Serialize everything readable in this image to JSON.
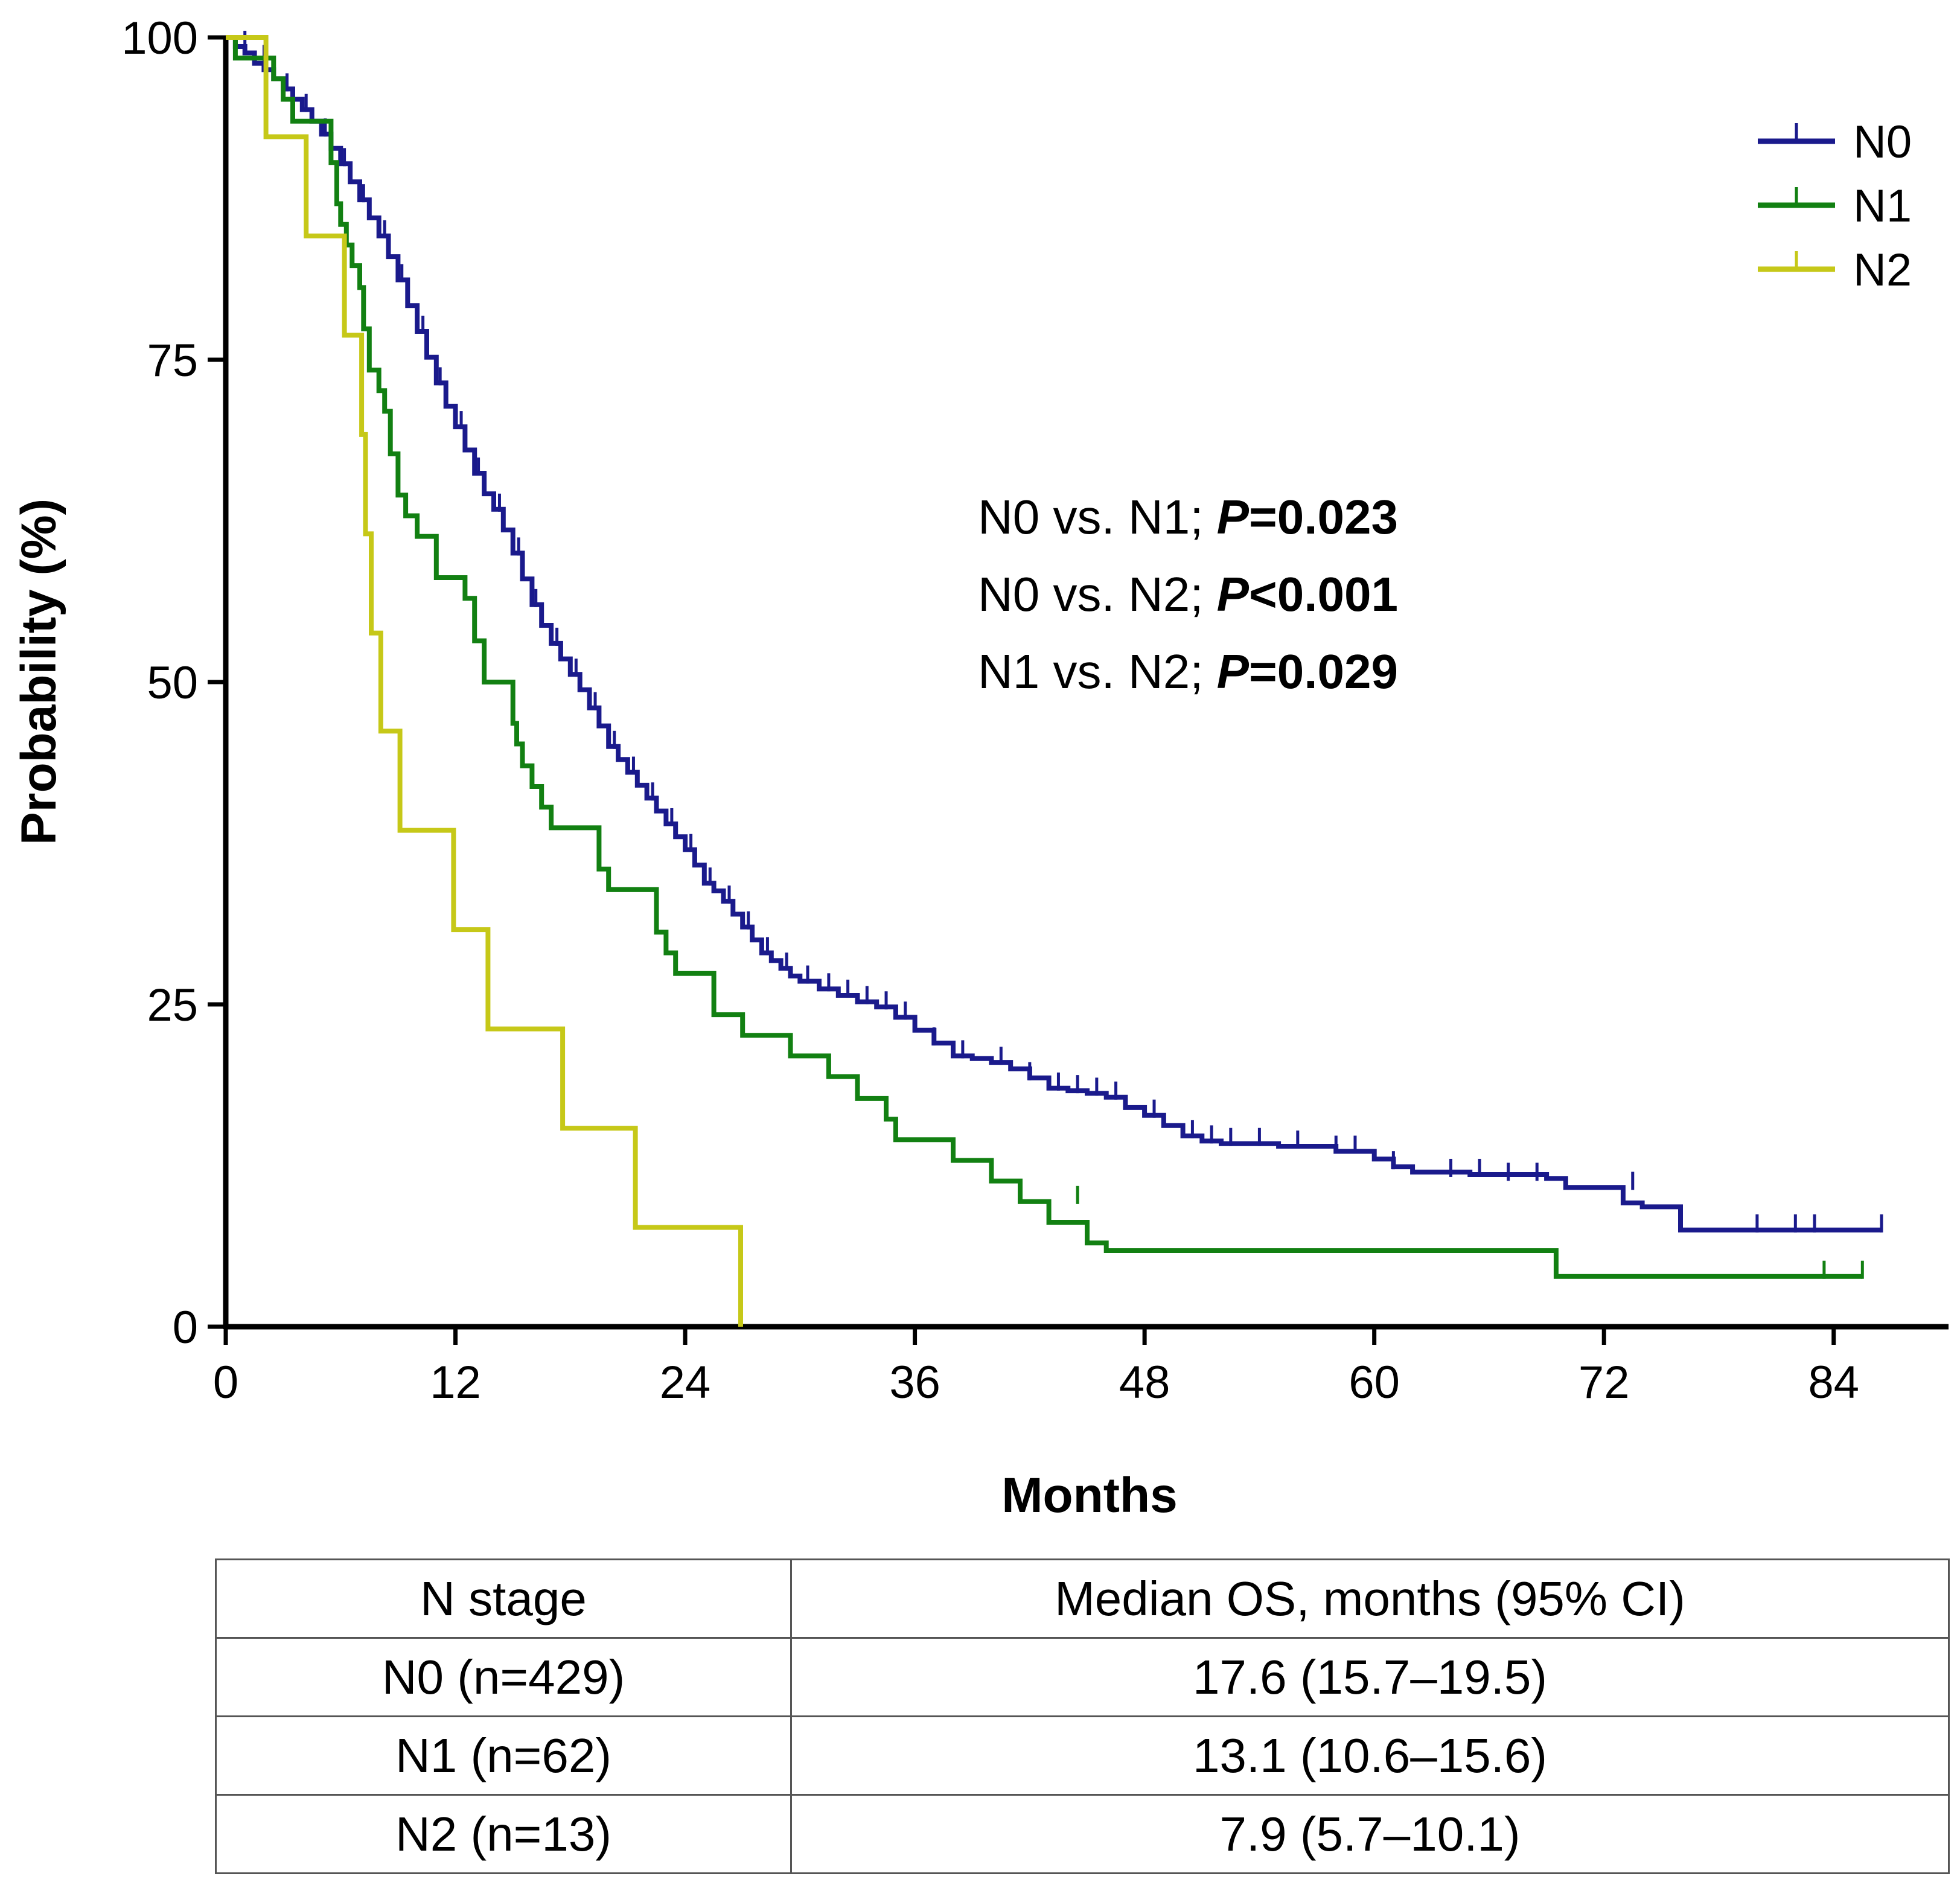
{
  "chart_data": {
    "type": "line",
    "subtype": "kaplan-meier",
    "xlabel": "Months",
    "ylabel": "Probability (%)",
    "xlim": [
      0,
      90
    ],
    "ylim": [
      0,
      100
    ],
    "xticks": [
      0,
      12,
      24,
      36,
      48,
      60,
      72,
      84
    ],
    "yticks": [
      0,
      25,
      50,
      75,
      100
    ],
    "legend_position": "top-right",
    "series": [
      {
        "name": "N0",
        "color": "#1a1a8c",
        "steps": [
          [
            0,
            100
          ],
          [
            0.5,
            99.3
          ],
          [
            1,
            98.8
          ],
          [
            1.5,
            98
          ],
          [
            2,
            97.5
          ],
          [
            2.5,
            96.8
          ],
          [
            3,
            96
          ],
          [
            3.5,
            95.2
          ],
          [
            4,
            94.4
          ],
          [
            4.5,
            93.5
          ],
          [
            5,
            92.5
          ],
          [
            5.5,
            91.4
          ],
          [
            6,
            90.2
          ],
          [
            6.5,
            88.8
          ],
          [
            7,
            87.4
          ],
          [
            7.5,
            86
          ],
          [
            8,
            84.6
          ],
          [
            8.5,
            83
          ],
          [
            9,
            81.2
          ],
          [
            9.5,
            79.2
          ],
          [
            10,
            77.2
          ],
          [
            10.5,
            75.2
          ],
          [
            11,
            73.2
          ],
          [
            11.5,
            71.4
          ],
          [
            12,
            69.8
          ],
          [
            12.5,
            68
          ],
          [
            13,
            66.2
          ],
          [
            13.5,
            64.6
          ],
          [
            14,
            63.4
          ],
          [
            14.5,
            61.8
          ],
          [
            15,
            60
          ],
          [
            15.5,
            58
          ],
          [
            16,
            56
          ],
          [
            16.5,
            54.4
          ],
          [
            17,
            53
          ],
          [
            17.5,
            51.8
          ],
          [
            18,
            50.6
          ],
          [
            18.5,
            49.4
          ],
          [
            19,
            48
          ],
          [
            19.5,
            46.6
          ],
          [
            20,
            45
          ],
          [
            20.5,
            44
          ],
          [
            21,
            43
          ],
          [
            21.5,
            42
          ],
          [
            22,
            41
          ],
          [
            22.5,
            40
          ],
          [
            23,
            39
          ],
          [
            23.5,
            38
          ],
          [
            24,
            37
          ],
          [
            24.5,
            35.8
          ],
          [
            25,
            34.4
          ],
          [
            25.5,
            33.8
          ],
          [
            26,
            33
          ],
          [
            26.5,
            32
          ],
          [
            27,
            31
          ],
          [
            27.5,
            30
          ],
          [
            28,
            29
          ],
          [
            28.5,
            28.4
          ],
          [
            29,
            27.8
          ],
          [
            29.5,
            27.2
          ],
          [
            30,
            26.8
          ],
          [
            31,
            26.2
          ],
          [
            32,
            25.7
          ],
          [
            33,
            25.2
          ],
          [
            34,
            24.8
          ],
          [
            35,
            24
          ],
          [
            36,
            23
          ],
          [
            37,
            22
          ],
          [
            38,
            21
          ],
          [
            39,
            20.8
          ],
          [
            40,
            20.5
          ],
          [
            41,
            20
          ],
          [
            42,
            19.3
          ],
          [
            43,
            18.5
          ],
          [
            44,
            18.3
          ],
          [
            45,
            18.1
          ],
          [
            46,
            17.8
          ],
          [
            47,
            17
          ],
          [
            48,
            16.4
          ],
          [
            49,
            15.6
          ],
          [
            50,
            14.8
          ],
          [
            51,
            14.4
          ],
          [
            52,
            14.2
          ],
          [
            55,
            14
          ],
          [
            58,
            13.6
          ],
          [
            60,
            13
          ],
          [
            61,
            12.4
          ],
          [
            62,
            12
          ],
          [
            65,
            11.8
          ],
          [
            69,
            11.5
          ],
          [
            70,
            10.8
          ],
          [
            73,
            9.6
          ],
          [
            74,
            9.3
          ],
          [
            76,
            7.5
          ],
          [
            86.5,
            7.5
          ]
        ],
        "censored": [
          [
            1,
            99.3
          ],
          [
            2,
            98.2
          ],
          [
            3.2,
            96
          ],
          [
            4.2,
            94.4
          ],
          [
            5.2,
            92.5
          ],
          [
            6.2,
            90.2
          ],
          [
            7.2,
            87.4
          ],
          [
            8.3,
            84.6
          ],
          [
            9.2,
            81.2
          ],
          [
            10.3,
            77.2
          ],
          [
            11.2,
            73.2
          ],
          [
            12.3,
            69.8
          ],
          [
            13.2,
            66.2
          ],
          [
            14.3,
            63.4
          ],
          [
            15.3,
            60
          ],
          [
            16.2,
            56
          ],
          [
            17.3,
            53
          ],
          [
            18.3,
            50.6
          ],
          [
            19.3,
            48
          ],
          [
            20.3,
            45
          ],
          [
            21.3,
            43
          ],
          [
            22.3,
            41
          ],
          [
            23.3,
            39
          ],
          [
            24.3,
            37
          ],
          [
            25.3,
            34.4
          ],
          [
            26.3,
            33
          ],
          [
            27.3,
            31
          ],
          [
            28.3,
            29
          ],
          [
            29.3,
            27.8
          ],
          [
            30.4,
            26.8
          ],
          [
            31.5,
            26.2
          ],
          [
            32.5,
            25.7
          ],
          [
            33.5,
            25.2
          ],
          [
            34.5,
            24.8
          ],
          [
            35.5,
            24
          ],
          [
            37,
            22
          ],
          [
            38.5,
            21
          ],
          [
            40.5,
            20.5
          ],
          [
            42,
            19.3
          ],
          [
            43.5,
            18.5
          ],
          [
            44.5,
            18.3
          ],
          [
            45.5,
            18.1
          ],
          [
            46.5,
            17.8
          ],
          [
            48.5,
            16.4
          ],
          [
            50.5,
            14.8
          ],
          [
            51.5,
            14.4
          ],
          [
            52.5,
            14.2
          ],
          [
            54,
            14.2
          ],
          [
            56,
            14
          ],
          [
            58,
            13.6
          ],
          [
            59,
            13.6
          ],
          [
            61,
            12.4
          ],
          [
            64,
            11.8
          ],
          [
            65.5,
            11.8
          ],
          [
            67,
            11.5
          ],
          [
            68.5,
            11.5
          ],
          [
            73.5,
            10.8
          ],
          [
            80,
            7.5
          ],
          [
            82,
            7.5
          ],
          [
            83,
            7.5
          ],
          [
            86.5,
            7.5
          ]
        ]
      },
      {
        "name": "N1",
        "color": "#128012",
        "steps": [
          [
            0,
            100
          ],
          [
            0.5,
            98.4
          ],
          [
            2,
            98.4
          ],
          [
            2.5,
            96.8
          ],
          [
            3,
            95.2
          ],
          [
            3.5,
            93.5
          ],
          [
            5,
            93.5
          ],
          [
            5.5,
            90.3
          ],
          [
            5.8,
            87.1
          ],
          [
            6,
            85.5
          ],
          [
            6.3,
            83.9
          ],
          [
            6.6,
            82.3
          ],
          [
            7,
            80.6
          ],
          [
            7.2,
            77.4
          ],
          [
            7.5,
            74.2
          ],
          [
            8,
            72.6
          ],
          [
            8.3,
            71
          ],
          [
            8.6,
            67.7
          ],
          [
            9,
            64.5
          ],
          [
            9.4,
            62.9
          ],
          [
            10,
            61.3
          ],
          [
            11,
            58.1
          ],
          [
            12,
            58.1
          ],
          [
            12.5,
            56.5
          ],
          [
            13,
            53.2
          ],
          [
            13.5,
            50
          ],
          [
            14.5,
            50
          ],
          [
            15,
            46.8
          ],
          [
            15.2,
            45.2
          ],
          [
            15.5,
            43.5
          ],
          [
            16,
            41.9
          ],
          [
            16.5,
            40.3
          ],
          [
            17,
            38.7
          ],
          [
            19,
            38.7
          ],
          [
            19.5,
            35.5
          ],
          [
            20,
            33.9
          ],
          [
            22,
            33.9
          ],
          [
            22.5,
            30.6
          ],
          [
            23,
            29
          ],
          [
            23.5,
            27.4
          ],
          [
            25,
            27.4
          ],
          [
            25.5,
            24.2
          ],
          [
            26.5,
            24.2
          ],
          [
            27,
            22.6
          ],
          [
            29,
            22.6
          ],
          [
            29.5,
            21
          ],
          [
            31,
            21
          ],
          [
            31.5,
            19.4
          ],
          [
            32.5,
            19.4
          ],
          [
            33,
            17.7
          ],
          [
            34,
            17.7
          ],
          [
            34.5,
            16.1
          ],
          [
            35,
            14.5
          ],
          [
            37,
            14.5
          ],
          [
            38,
            12.9
          ],
          [
            39.5,
            12.9
          ],
          [
            40,
            11.3
          ],
          [
            41,
            11.3
          ],
          [
            41.5,
            9.7
          ],
          [
            42.5,
            9.7
          ],
          [
            43,
            8.1
          ],
          [
            44,
            8.1
          ],
          [
            45,
            6.5
          ],
          [
            46,
            5.9
          ],
          [
            69,
            5.9
          ],
          [
            69.5,
            3.9
          ],
          [
            85.5,
            3.9
          ]
        ],
        "censored": [
          [
            44.5,
            9.7
          ],
          [
            83.5,
            3.9
          ],
          [
            85.5,
            3.9
          ]
        ]
      },
      {
        "name": "N2",
        "color": "#c6c818",
        "steps": [
          [
            0,
            100
          ],
          [
            2,
            100
          ],
          [
            2.1,
            92.3
          ],
          [
            4,
            92.3
          ],
          [
            4.2,
            84.6
          ],
          [
            6,
            84.6
          ],
          [
            6.2,
            76.9
          ],
          [
            7,
            76.9
          ],
          [
            7.1,
            69.2
          ],
          [
            7.3,
            61.5
          ],
          [
            7.6,
            53.8
          ],
          [
            8.1,
            46.2
          ],
          [
            9,
            46.2
          ],
          [
            9.1,
            38.5
          ],
          [
            11.8,
            38.5
          ],
          [
            11.9,
            30.8
          ],
          [
            13.6,
            30.8
          ],
          [
            13.7,
            23.1
          ],
          [
            17.5,
            23.1
          ],
          [
            17.6,
            15.4
          ],
          [
            21.3,
            15.4
          ],
          [
            21.4,
            7.7
          ],
          [
            26.8,
            7.7
          ],
          [
            26.9,
            0
          ]
        ],
        "censored": []
      }
    ],
    "annotations": [
      {
        "prefix": "N0 vs. N1; ",
        "pvalue": "P=0.023"
      },
      {
        "prefix": "N0 vs. N2; ",
        "pvalue": "P<0.001"
      },
      {
        "prefix": "N1 vs. N2; ",
        "pvalue": "P=0.029"
      }
    ]
  },
  "table": {
    "headers": [
      "N stage",
      "Median OS, months (95% CI)"
    ],
    "rows": [
      [
        "N0 (n=429)",
        "17.6 (15.7–19.5)"
      ],
      [
        "N1 (n=62)",
        "13.1 (10.6–15.6)"
      ],
      [
        "N2 (n=13)",
        "7.9 (5.7–10.1)"
      ]
    ]
  }
}
